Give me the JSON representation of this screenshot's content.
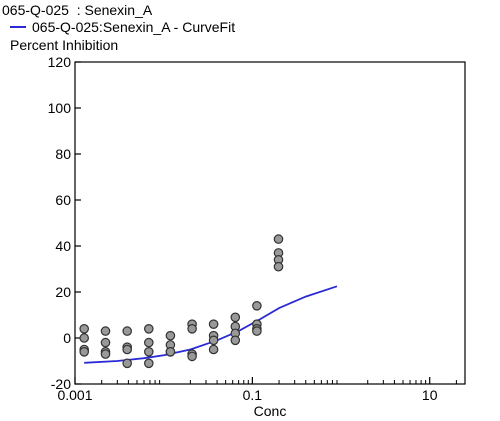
{
  "header": {
    "title": "065-Q-025  : Senexin_A",
    "legend_label": "065-Q-025:Senexin_A - CurveFit",
    "ylabel": "Percent Inhibition"
  },
  "chart_data": {
    "type": "scatter",
    "xlabel": "Conc",
    "ylabel": "Percent Inhibition",
    "xscale": "log",
    "xlim": [
      0.001,
      25
    ],
    "ylim": [
      -20,
      120
    ],
    "xticks": [
      0.001,
      0.1,
      10
    ],
    "xtick_labels": [
      "0.001",
      "0.1",
      "10"
    ],
    "yticks": [
      -20,
      0,
      20,
      40,
      60,
      80,
      100,
      120
    ],
    "ytick_labels": [
      "-20",
      "0",
      "20",
      "40",
      "60",
      "80",
      "100",
      "120"
    ],
    "grid": false,
    "legend": "top-left",
    "colors": {
      "curve": "#2b2bd6",
      "points": "#999999",
      "point_edge": "#333333"
    },
    "points": [
      {
        "x": 0.00127,
        "y": 4
      },
      {
        "x": 0.00127,
        "y": 0
      },
      {
        "x": 0.00127,
        "y": -5
      },
      {
        "x": 0.00127,
        "y": -6
      },
      {
        "x": 0.00221,
        "y": 3
      },
      {
        "x": 0.00221,
        "y": -2
      },
      {
        "x": 0.00221,
        "y": -6
      },
      {
        "x": 0.00221,
        "y": -7
      },
      {
        "x": 0.00388,
        "y": 3
      },
      {
        "x": 0.00388,
        "y": -4
      },
      {
        "x": 0.00388,
        "y": -5
      },
      {
        "x": 0.00388,
        "y": -11
      },
      {
        "x": 0.0068,
        "y": 4
      },
      {
        "x": 0.0068,
        "y": -2
      },
      {
        "x": 0.0068,
        "y": -6
      },
      {
        "x": 0.0068,
        "y": -11
      },
      {
        "x": 0.0119,
        "y": 1
      },
      {
        "x": 0.0119,
        "y": -3
      },
      {
        "x": 0.0119,
        "y": -6
      },
      {
        "x": 0.0119,
        "y": -6
      },
      {
        "x": 0.0209,
        "y": 6
      },
      {
        "x": 0.0209,
        "y": 4
      },
      {
        "x": 0.0209,
        "y": -7
      },
      {
        "x": 0.0209,
        "y": -8
      },
      {
        "x": 0.0366,
        "y": 6
      },
      {
        "x": 0.0366,
        "y": 1
      },
      {
        "x": 0.0366,
        "y": -1
      },
      {
        "x": 0.0366,
        "y": -5
      },
      {
        "x": 0.0642,
        "y": 9
      },
      {
        "x": 0.0642,
        "y": 5
      },
      {
        "x": 0.0642,
        "y": 2
      },
      {
        "x": 0.0642,
        "y": -1
      },
      {
        "x": 0.1125,
        "y": 14
      },
      {
        "x": 0.1125,
        "y": 6
      },
      {
        "x": 0.1125,
        "y": 4
      },
      {
        "x": 0.1125,
        "y": 3
      },
      {
        "x": 0.197,
        "y": 43
      },
      {
        "x": 0.197,
        "y": 37
      },
      {
        "x": 0.197,
        "y": 34
      },
      {
        "x": 0.197,
        "y": 31
      }
    ],
    "curve": [
      {
        "x": 0.00127,
        "y": -10.8
      },
      {
        "x": 0.003,
        "y": -10
      },
      {
        "x": 0.006,
        "y": -8.8
      },
      {
        "x": 0.01,
        "y": -7.5
      },
      {
        "x": 0.02,
        "y": -5
      },
      {
        "x": 0.04,
        "y": -1
      },
      {
        "x": 0.07,
        "y": 3
      },
      {
        "x": 0.12,
        "y": 8
      },
      {
        "x": 0.2,
        "y": 13
      },
      {
        "x": 0.4,
        "y": 18
      },
      {
        "x": 0.9,
        "y": 22.5
      }
    ]
  }
}
